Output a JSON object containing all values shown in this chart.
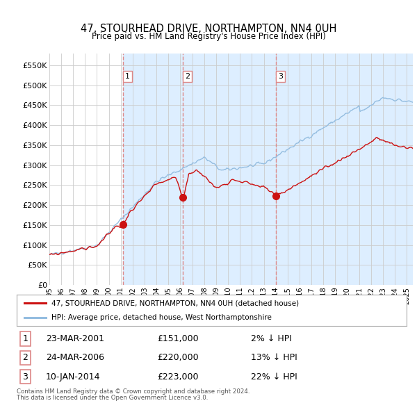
{
  "title": "47, STOURHEAD DRIVE, NORTHAMPTON, NN4 0UH",
  "subtitle": "Price paid vs. HM Land Registry's House Price Index (HPI)",
  "legend_line1": "47, STOURHEAD DRIVE, NORTHAMPTON, NN4 0UH (detached house)",
  "legend_line2": "HPI: Average price, detached house, West Northamptonshire",
  "footer1": "Contains HM Land Registry data © Crown copyright and database right 2024.",
  "footer2": "This data is licensed under the Open Government Licence v3.0.",
  "transactions": [
    {
      "num": 1,
      "date": "23-MAR-2001",
      "price": "£151,000",
      "hpi": "2% ↓ HPI"
    },
    {
      "num": 2,
      "date": "24-MAR-2006",
      "price": "£220,000",
      "hpi": "13% ↓ HPI"
    },
    {
      "num": 3,
      "date": "10-JAN-2014",
      "price": "£223,000",
      "hpi": "22% ↓ HPI"
    }
  ],
  "hpi_color": "#94bde0",
  "price_color": "#cc1111",
  "marker_color": "#cc1111",
  "vline_color": "#dd8888",
  "shade_color": "#ddeeff",
  "background_color": "#ffffff",
  "grid_color": "#cccccc",
  "ylim": [
    0,
    580000
  ],
  "yticks": [
    0,
    50000,
    100000,
    150000,
    200000,
    250000,
    300000,
    350000,
    400000,
    450000,
    500000,
    550000
  ],
  "x_start_year": 1995.0,
  "x_end_year": 2025.5
}
